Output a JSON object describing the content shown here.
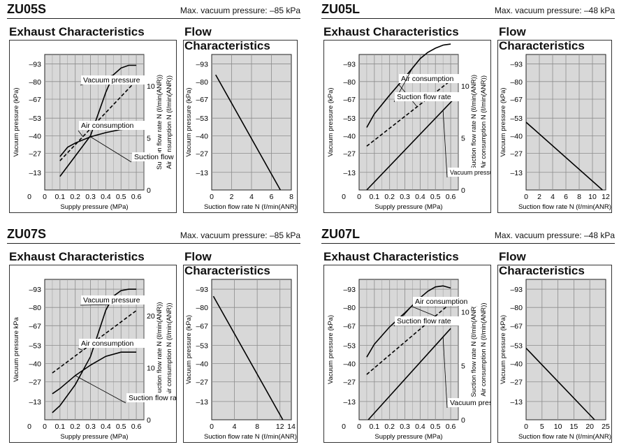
{
  "colors": {
    "plot_bg": "#d8d8d8",
    "grid": "#8c8c8c",
    "line": "#000000",
    "label_bg": "#ffffff"
  },
  "blocks": [
    {
      "model": "ZU05S",
      "max_vacuum": "Max. vacuum pressure: –85 kPa",
      "exhaust_title": "Exhaust Characteristics",
      "flow_title": "Flow Characteristics"
    },
    {
      "model": "ZU05L",
      "max_vacuum": "Max. vacuum pressure: –48 kPa",
      "exhaust_title": "Exhaust Characteristics",
      "flow_title": "Flow Characteristics"
    },
    {
      "model": "ZU07S",
      "max_vacuum": "Max. vacuum pressure: –85 kPa",
      "exhaust_title": "Exhaust Characteristics",
      "flow_title": "Flow Characteristics"
    },
    {
      "model": "ZU07L",
      "max_vacuum": "Max. vacuum pressure: –48 kPa",
      "exhaust_title": "Exhaust Characteristics",
      "flow_title": "Flow Characteristics"
    }
  ],
  "chart_data": [
    {
      "id": "zu05s_exhaust",
      "type": "line",
      "xlabel": "Supply pressure (MPa)",
      "ylabel": "Vacuum pressure (kPa)",
      "y2label_a": "Suction flow rate N (ℓ/min(ANR))",
      "y2label_b": "Air consumption N (ℓ/min(ANR))",
      "xlim": [
        0,
        0.65
      ],
      "xticks": [
        0,
        0.1,
        0.2,
        0.3,
        0.4,
        0.5,
        0.6
      ],
      "xtick_labels": [
        "0",
        "0.1",
        "0.2",
        "0.3",
        "0.4",
        "0.5",
        "0.6"
      ],
      "ylim": [
        0,
        -100
      ],
      "yticks": [
        -13,
        -27,
        -40,
        -53,
        -67,
        -80,
        -93
      ],
      "ytick_labels": [
        "–13",
        "–27",
        "–40",
        "–53",
        "–67",
        "–80",
        "–93"
      ],
      "y2lim": [
        0,
        13
      ],
      "y2ticks": [
        0,
        5,
        10
      ],
      "y2tick_labels": [
        "0",
        "5",
        "10"
      ],
      "series": [
        {
          "name": "Vacuum pressure",
          "axis": "left",
          "dash": false,
          "x": [
            0.1,
            0.2,
            0.3,
            0.4,
            0.45,
            0.5,
            0.55,
            0.6
          ],
          "y": [
            -10,
            -25,
            -40,
            -72,
            -85,
            -90,
            -92,
            -92
          ]
        },
        {
          "name": "Air consumption",
          "axis": "right",
          "dash": true,
          "x": [
            0.1,
            0.6
          ],
          "y": [
            2.8,
            10.5
          ]
        },
        {
          "name": "Suction flow rate",
          "axis": "right",
          "dash": false,
          "x": [
            0.1,
            0.15,
            0.2,
            0.3,
            0.4,
            0.5,
            0.6
          ],
          "y": [
            3.2,
            4.1,
            4.5,
            5.1,
            5.5,
            5.8,
            5.9
          ]
        }
      ],
      "annotations": [
        "Vacuum pressure",
        "Air consumption",
        "Suction flow rate"
      ]
    },
    {
      "id": "zu05s_flow",
      "type": "line",
      "xlabel": "Suction flow rate N (ℓ/min(ANR))",
      "ylabel": "Vacuum pressure (kPa)",
      "xlim": [
        0,
        8
      ],
      "xticks": [
        0,
        2,
        4,
        6,
        8
      ],
      "xtick_labels": [
        "0",
        "2",
        "4",
        "6",
        "8"
      ],
      "ylim": [
        0,
        -100
      ],
      "yticks": [
        -13,
        -27,
        -40,
        -53,
        -67,
        -80,
        -93
      ],
      "ytick_labels": [
        "–13",
        "–27",
        "–40",
        "–53",
        "–67",
        "–80",
        "–93"
      ],
      "series": [
        {
          "x": [
            0.4,
            6.9
          ],
          "y": [
            -85,
            0
          ]
        }
      ]
    },
    {
      "id": "zu05l_exhaust",
      "type": "line",
      "xlabel": "Supply pressure (MPa)",
      "ylabel": "Vacuum pressure (kPa)",
      "y2label_a": "Suction flow rate N (ℓ/min(ANR))",
      "y2label_b": "Air consumption N (ℓ/min(ANR))",
      "xlim": [
        0,
        0.65
      ],
      "xticks": [
        0,
        0.1,
        0.2,
        0.3,
        0.4,
        0.5,
        0.6
      ],
      "xtick_labels": [
        "0",
        "0.1",
        "0.2",
        "0.3",
        "0.4",
        "0.5",
        "0.6"
      ],
      "ylim": [
        0,
        -100
      ],
      "yticks": [
        -13,
        -27,
        -40,
        -53,
        -67,
        -80,
        -93
      ],
      "ytick_labels": [
        "–13",
        "–27",
        "–40",
        "–53",
        "–67",
        "–80",
        "–93"
      ],
      "y2lim": [
        0,
        13
      ],
      "y2ticks": [
        0,
        5,
        10
      ],
      "y2tick_labels": [
        "0",
        "5",
        "10"
      ],
      "series": [
        {
          "name": "Vacuum pressure",
          "axis": "left",
          "dash": false,
          "x": [
            0.05,
            0.62
          ],
          "y": [
            0,
            -67
          ]
        },
        {
          "name": "Air consumption",
          "axis": "right",
          "dash": true,
          "x": [
            0.05,
            0.6
          ],
          "y": [
            4.2,
            10.5
          ]
        },
        {
          "name": "Suction flow rate",
          "axis": "right",
          "dash": false,
          "x": [
            0.05,
            0.1,
            0.2,
            0.3,
            0.4,
            0.45,
            0.5,
            0.55,
            0.6
          ],
          "y": [
            6.0,
            7.3,
            9.1,
            10.8,
            12.6,
            13.2,
            13.6,
            13.9,
            14.0
          ]
        }
      ],
      "annotations": [
        "Air consumption",
        "Suction flow rate",
        "Vacuum pressure"
      ]
    },
    {
      "id": "zu05l_flow",
      "type": "line",
      "xlabel": "Suction flow rate N (ℓ/min(ANR))",
      "ylabel": "Vacuum pressure (kPa)",
      "xlim": [
        0,
        12
      ],
      "xticks": [
        0,
        2,
        4,
        6,
        8,
        10,
        12
      ],
      "xtick_labels": [
        "0",
        "2",
        "4",
        "6",
        "8",
        "10",
        "12"
      ],
      "ylim": [
        0,
        -100
      ],
      "yticks": [
        -13,
        -27,
        -40,
        -53,
        -67,
        -80,
        -93
      ],
      "ytick_labels": [
        "–13",
        "–27",
        "–40",
        "–53",
        "–67",
        "–80",
        "–93"
      ],
      "series": [
        {
          "x": [
            0,
            11.5
          ],
          "y": [
            -50,
            0
          ]
        }
      ]
    },
    {
      "id": "zu07s_exhaust",
      "type": "line",
      "xlabel": "Supply pressure (MPa)",
      "ylabel": "Vacuum pressure kPa",
      "y2label_a": "Suction flow rate N (ℓ/min(ANR))",
      "y2label_b": "Air consumption N (ℓ/min(ANR))",
      "xlim": [
        0,
        0.65
      ],
      "xticks": [
        0,
        0.1,
        0.2,
        0.3,
        0.4,
        0.5,
        0.6
      ],
      "xtick_labels": [
        "0",
        "0.1",
        "0.2",
        "0.3",
        "0.4",
        "0.5",
        "0.6"
      ],
      "ylim": [
        0,
        -100
      ],
      "yticks": [
        -13,
        -27,
        -40,
        -53,
        -67,
        -80,
        -93
      ],
      "ytick_labels": [
        "–13",
        "–27",
        "–40",
        "–53",
        "–67",
        "–80",
        "–93"
      ],
      "y2lim": [
        0,
        27
      ],
      "y2ticks": [
        0,
        10,
        20
      ],
      "y2tick_labels": [
        "0",
        "10",
        "20"
      ],
      "series": [
        {
          "name": "Vacuum pressure",
          "axis": "left",
          "dash": false,
          "x": [
            0.05,
            0.1,
            0.2,
            0.3,
            0.4,
            0.45,
            0.5,
            0.55,
            0.6
          ],
          "y": [
            -5,
            -10,
            -25,
            -45,
            -78,
            -88,
            -92,
            -93,
            -93
          ]
        },
        {
          "name": "Air consumption",
          "axis": "right",
          "dash": true,
          "x": [
            0.05,
            0.6
          ],
          "y": [
            9.0,
            21.0
          ]
        },
        {
          "name": "Suction flow rate",
          "axis": "right",
          "dash": false,
          "x": [
            0.05,
            0.1,
            0.2,
            0.3,
            0.4,
            0.5,
            0.6
          ],
          "y": [
            5.0,
            6.0,
            8.5,
            10.5,
            12.2,
            13.0,
            13.0
          ]
        }
      ],
      "annotations": [
        "Vacuum pressure",
        "Air consumption",
        "Suction flow rate"
      ]
    },
    {
      "id": "zu07s_flow",
      "type": "line",
      "xlabel": "Suction flow rate N (ℓ/min(ANR))",
      "ylabel": "Vacuum pressure (kPa)",
      "xlim": [
        0,
        14
      ],
      "xticks": [
        0,
        4,
        8,
        12,
        14
      ],
      "xtick_labels": [
        "0",
        "4",
        "8",
        "12",
        "14"
      ],
      "ylim": [
        0,
        -100
      ],
      "yticks": [
        -13,
        -27,
        -40,
        -53,
        -67,
        -80,
        -93
      ],
      "ytick_labels": [
        "–13",
        "–27",
        "–40",
        "–53",
        "–67",
        "–80",
        "–93"
      ],
      "series": [
        {
          "x": [
            0.3,
            12.5
          ],
          "y": [
            -88,
            0
          ]
        }
      ]
    },
    {
      "id": "zu07l_exhaust",
      "type": "line",
      "xlabel": "Supply pressure (MPa)",
      "ylabel": "Vacuum pressure (kPa)",
      "y2label_a": "Suction flow rate N (ℓ/min(ANR))",
      "y2label_b": "Air consumption N (ℓ/min(ANR))",
      "xlim": [
        0,
        0.65
      ],
      "xticks": [
        0,
        0.1,
        0.2,
        0.3,
        0.4,
        0.5,
        0.6
      ],
      "xtick_labels": [
        "0",
        "0.1",
        "0.2",
        "0.3",
        "0.4",
        "0.5",
        "0.6"
      ],
      "ylim": [
        0,
        -100
      ],
      "yticks": [
        -13,
        -27,
        -40,
        -53,
        -67,
        -80,
        -93
      ],
      "ytick_labels": [
        "–13",
        "–27",
        "–40",
        "–53",
        "–67",
        "–80",
        "–93"
      ],
      "y2lim": [
        0,
        13
      ],
      "y2ticks": [
        0,
        5,
        10
      ],
      "y2tick_labels": [
        "0",
        "5",
        "10"
      ],
      "series": [
        {
          "name": "Vacuum pressure",
          "axis": "left",
          "dash": false,
          "x": [
            0.06,
            0.6
          ],
          "y": [
            0,
            -65
          ]
        },
        {
          "name": "Air consumption",
          "axis": "right",
          "dash": true,
          "x": [
            0.05,
            0.6
          ],
          "y": [
            4.2,
            10.8
          ]
        },
        {
          "name": "Suction flow rate",
          "axis": "right",
          "dash": false,
          "x": [
            0.05,
            0.1,
            0.2,
            0.3,
            0.4,
            0.45,
            0.5,
            0.55,
            0.6
          ],
          "y": [
            5.8,
            7.0,
            8.6,
            9.9,
            11.3,
            11.9,
            12.3,
            12.4,
            12.2
          ]
        }
      ],
      "annotations": [
        "Air consumption",
        "Suction flow rate",
        "Vacuum pressure"
      ]
    },
    {
      "id": "zu07l_flow",
      "type": "line",
      "xlabel": "Suction flow rate N (ℓ/min(ANR))",
      "ylabel": "Vacuum pressure (kPa)",
      "xlim": [
        0,
        25
      ],
      "xticks": [
        0,
        5,
        10,
        15,
        20,
        25
      ],
      "xtick_labels": [
        "0",
        "5",
        "10",
        "15",
        "20",
        "25"
      ],
      "ylim": [
        0,
        -100
      ],
      "yticks": [
        -13,
        -27,
        -40,
        -53,
        -67,
        -80,
        -93
      ],
      "ytick_labels": [
        "–13",
        "–27",
        "–40",
        "–53",
        "–67",
        "–80",
        "–93"
      ],
      "series": [
        {
          "x": [
            0,
            21.5
          ],
          "y": [
            -51,
            0
          ]
        }
      ]
    }
  ]
}
